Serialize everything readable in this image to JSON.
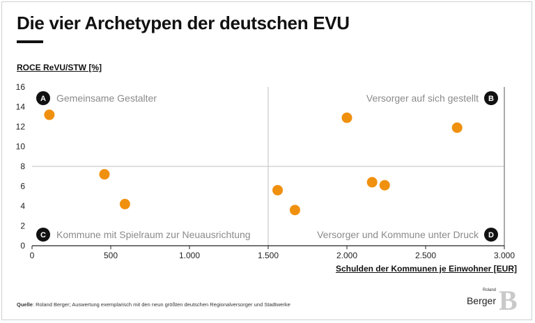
{
  "title": "Die vier Archetypen der deutschen EVU",
  "source_label": "Quelle",
  "source_text": "Roland Berger; Auswertung exemplarisch mit den neun größten deutschen Regionalversorger und Stadtwerke",
  "logo": {
    "small": "Roland",
    "big": "Berger",
    "mark": "B"
  },
  "colors": {
    "point": "#F0900F",
    "divider": "#bfbfbf",
    "badge": "#111111"
  },
  "chart_data": {
    "type": "scatter",
    "title": "Die vier Archetypen der deutschen EVU",
    "xlabel": "Schulden der Kommunen je Einwohner [EUR]",
    "ylabel": "ROCE ReVU/STW [%]",
    "xlim": [
      0,
      3000
    ],
    "ylim": [
      0,
      16
    ],
    "x_ticks": [
      0,
      500,
      1000,
      1500,
      2000,
      2500,
      3000
    ],
    "x_tick_labels": [
      "0",
      "500",
      "1.000",
      "1.500",
      "2.000",
      "2.500",
      "3.000"
    ],
    "y_ticks": [
      0,
      2,
      4,
      6,
      8,
      10,
      12,
      14,
      16
    ],
    "y_tick_labels": [
      "0",
      "2",
      "4",
      "6",
      "8",
      "10",
      "12",
      "14",
      "16"
    ],
    "divider_x": 1500,
    "divider_y": 8,
    "grid": false,
    "points": [
      {
        "x": 110,
        "y": 13.2
      },
      {
        "x": 460,
        "y": 7.2
      },
      {
        "x": 590,
        "y": 4.2
      },
      {
        "x": 1560,
        "y": 5.6
      },
      {
        "x": 1670,
        "y": 3.6
      },
      {
        "x": 2000,
        "y": 12.9
      },
      {
        "x": 2160,
        "y": 6.4
      },
      {
        "x": 2240,
        "y": 6.1
      },
      {
        "x": 2700,
        "y": 11.9
      }
    ],
    "quadrants": [
      {
        "badge": "A",
        "label": "Gemeinsame Gestalter",
        "position": "top-left"
      },
      {
        "badge": "B",
        "label": "Versorger auf sich gestellt",
        "position": "top-right"
      },
      {
        "badge": "C",
        "label": "Kommune mit Spielraum zur Neuausrichtung",
        "position": "bottom-left"
      },
      {
        "badge": "D",
        "label": "Versorger und Kommune unter Druck",
        "position": "bottom-right"
      }
    ]
  }
}
